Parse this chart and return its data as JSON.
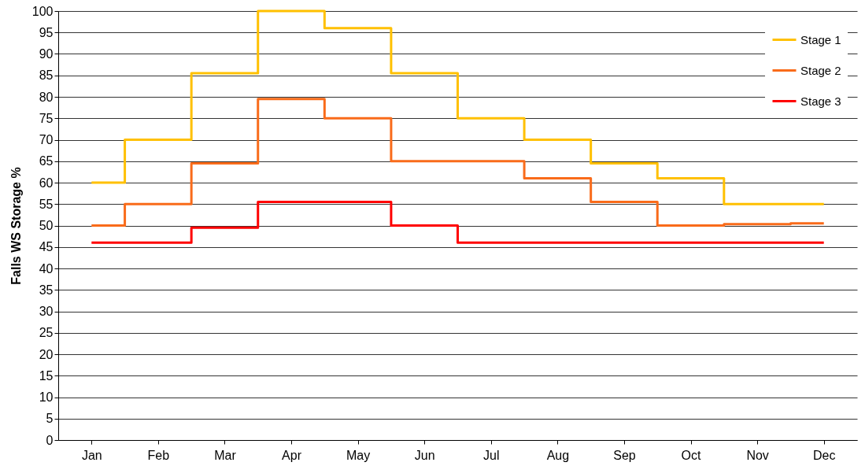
{
  "chart_data": {
    "type": "step",
    "ylabel": "Falls WS Storage %",
    "categories": [
      "Jan",
      "Feb",
      "Mar",
      "Apr",
      "May",
      "Jun",
      "Jul",
      "Aug",
      "Sep",
      "Oct",
      "Nov",
      "Dec"
    ],
    "series": [
      {
        "name": "Stage 1",
        "color": "#ffc000",
        "values": [
          60,
          70,
          85.5,
          100,
          96,
          85.5,
          75,
          70,
          64.5,
          61,
          55,
          55
        ]
      },
      {
        "name": "Stage 2",
        "color": "#f96b1a",
        "values": [
          50,
          55,
          64.5,
          79.5,
          75,
          65,
          65,
          61,
          55.5,
          50,
          50.3,
          50.5
        ]
      },
      {
        "name": "Stage 3",
        "color": "#ff0000",
        "values": [
          46,
          46,
          49.5,
          55.5,
          55.5,
          50,
          46,
          46,
          46,
          46,
          46,
          46
        ]
      }
    ],
    "ylim": [
      0,
      100
    ],
    "yticks": [
      0,
      5,
      10,
      15,
      20,
      25,
      30,
      35,
      40,
      45,
      50,
      55,
      60,
      65,
      70,
      75,
      80,
      85,
      90,
      95,
      100
    ],
    "grid": "y",
    "legend": "top right",
    "marker": "none",
    "line_style": "solid"
  }
}
